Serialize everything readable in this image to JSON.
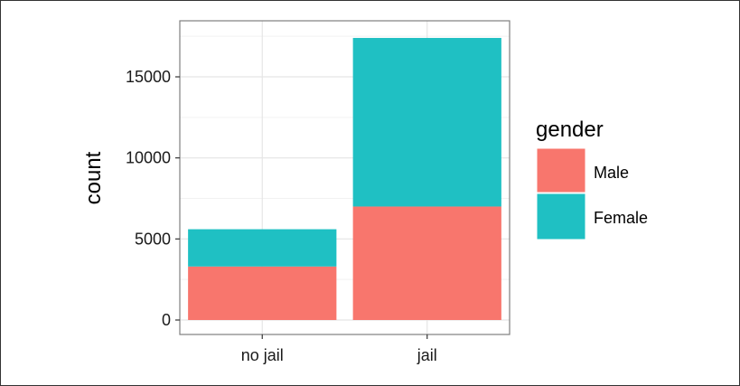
{
  "chart_data": {
    "type": "bar",
    "stacked": true,
    "categories": [
      "no jail",
      "jail"
    ],
    "series": [
      {
        "name": "Male",
        "values": [
          3300,
          7000
        ],
        "color": "#F8766D"
      },
      {
        "name": "Female",
        "values": [
          2300,
          10400
        ],
        "color": "#1FC0C3"
      }
    ],
    "xlabel": "",
    "ylabel": "count",
    "ylim": [
      0,
      17400
    ],
    "yticks": [
      0,
      5000,
      10000,
      15000
    ],
    "grid": true,
    "legend": {
      "title": "gender",
      "position": "right",
      "entries": [
        "Male",
        "Female"
      ]
    }
  }
}
